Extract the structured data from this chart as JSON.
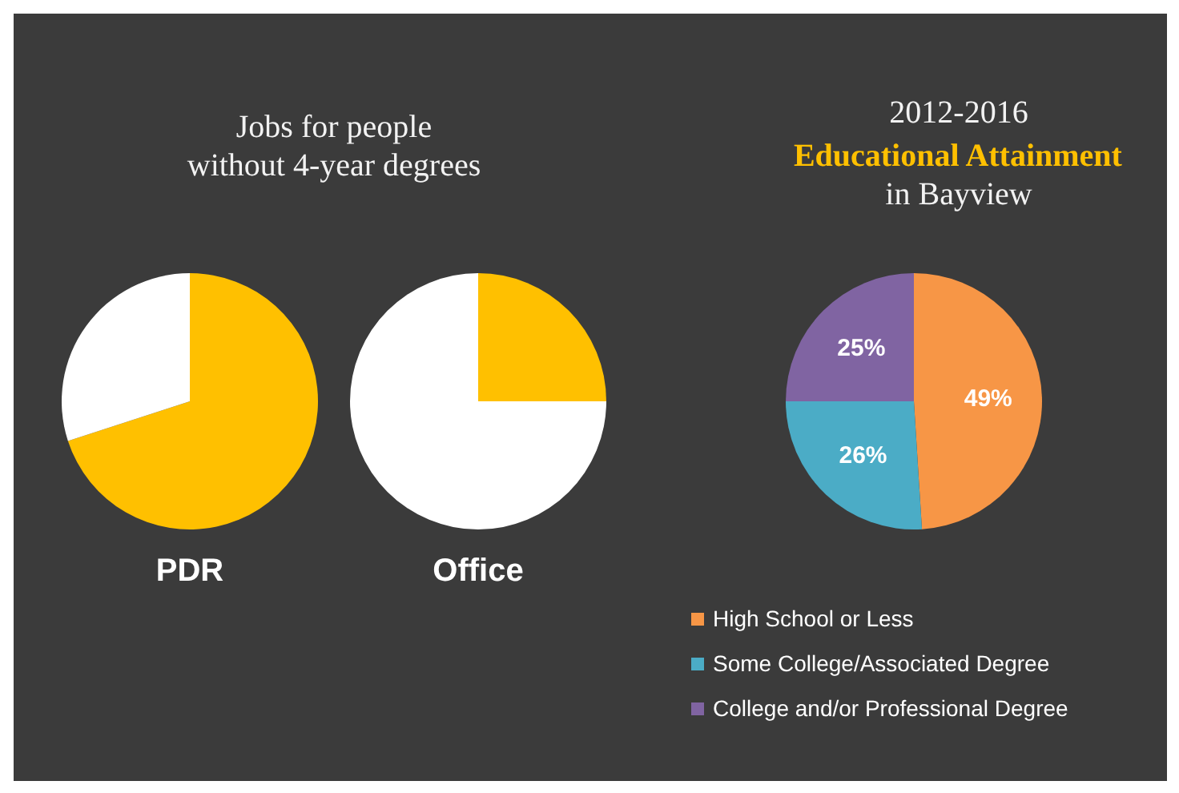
{
  "chart_data": [
    {
      "type": "pie",
      "title": "Jobs for people\nwithout 4-year degrees",
      "xlabel": "PDR",
      "categories": [
        null,
        null
      ],
      "values": [
        70,
        30
      ],
      "colors": [
        "#ffc000",
        "#ffffff"
      ]
    },
    {
      "type": "pie",
      "xlabel": "Office",
      "categories": [
        null,
        null
      ],
      "values": [
        25,
        75
      ],
      "colors": [
        "#ffc000",
        "#ffffff"
      ]
    },
    {
      "type": "pie",
      "title": "2012-2016\nEducational Attainment\nin Bayview",
      "categories": [
        "High School or Less",
        "Some College/Associated Degree",
        "College and/or Professional Degree"
      ],
      "values": [
        49,
        26,
        25
      ],
      "value_labels": [
        "49%",
        "26%",
        "25%"
      ],
      "colors": [
        "#f79646",
        "#4bacc6",
        "#8064a2"
      ],
      "legend": "bottom"
    }
  ]
}
